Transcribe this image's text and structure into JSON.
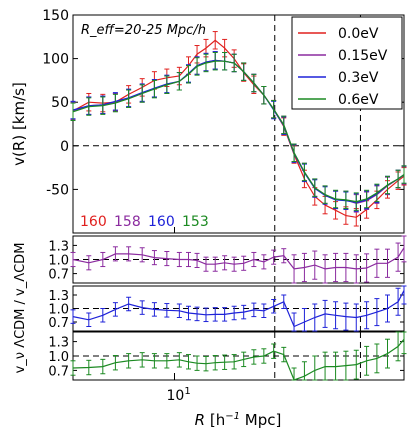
{
  "chart_data": [
    {
      "type": "line",
      "panel": "main",
      "annotation": "R_eff=20-25 Mpc/h",
      "ylabel": "v(R) [km/s]",
      "ylim": [
        -100,
        150
      ],
      "yticks": [
        -50,
        0,
        50,
        100,
        150
      ],
      "xscale": "log",
      "xlim": [
        4.4,
        64
      ],
      "reference_lines": {
        "y": [
          0
        ],
        "x": [
          22.5,
          45
        ]
      },
      "legend_position": "top-right",
      "x": [
        4.4,
        5.0,
        5.6,
        6.2,
        6.9,
        7.7,
        8.5,
        9.4,
        10.4,
        11.2,
        12.0,
        12.9,
        13.9,
        15.0,
        16.2,
        17.5,
        19.0,
        20.6,
        22.3,
        24.2,
        26.3,
        28.6,
        31.1,
        33.8,
        36.8,
        40.0,
        43.5,
        47.3,
        51.4,
        56.0,
        61.0,
        64.0
      ],
      "series": [
        {
          "name": "0.0eV",
          "color": "#e0201e",
          "values": [
            40,
            50,
            49,
            50,
            59,
            67,
            75,
            78,
            80,
            92,
            105,
            112,
            121,
            112,
            100,
            84,
            70,
            58,
            42,
            22,
            -10,
            -38,
            -58,
            -68,
            -74,
            -80,
            -82,
            -73,
            -62,
            -50,
            -40,
            -35
          ],
          "errors": [
            10,
            10,
            10,
            10,
            10,
            10,
            10,
            10,
            10,
            10,
            10,
            10,
            10,
            10,
            10,
            10,
            10,
            10,
            10,
            10,
            10,
            10,
            10,
            10,
            10,
            10,
            10,
            10,
            10,
            10,
            10,
            10
          ]
        },
        {
          "name": "0.15eV",
          "color": "#8b2b9f",
          "values": [
            40,
            46,
            47,
            50,
            54,
            60,
            66,
            70,
            74,
            82,
            92,
            96,
            98,
            97,
            95,
            85,
            72,
            58,
            42,
            24,
            -8,
            -30,
            -48,
            -56,
            -62,
            -62,
            -66,
            -63,
            -56,
            -46,
            -38,
            -34
          ],
          "errors": [
            10,
            10,
            10,
            10,
            10,
            10,
            10,
            10,
            10,
            10,
            10,
            10,
            10,
            10,
            10,
            10,
            10,
            10,
            10,
            10,
            10,
            10,
            10,
            10,
            10,
            10,
            10,
            10,
            10,
            10,
            10,
            10
          ]
        },
        {
          "name": "0.3eV",
          "color": "#1e22d8",
          "values": [
            41,
            46,
            47,
            51,
            55,
            61,
            66,
            71,
            74,
            83,
            92,
            96,
            98,
            97,
            95,
            85,
            72,
            58,
            41,
            23,
            -9,
            -31,
            -49,
            -57,
            -62,
            -63,
            -65,
            -62,
            -55,
            -45,
            -38,
            -33
          ],
          "errors": [
            10,
            10,
            10,
            10,
            10,
            10,
            10,
            10,
            10,
            10,
            10,
            10,
            10,
            10,
            10,
            10,
            10,
            10,
            10,
            10,
            10,
            10,
            10,
            10,
            10,
            10,
            10,
            10,
            10,
            10,
            10,
            10
          ]
        },
        {
          "name": "0.6eV",
          "color": "#1c8a22",
          "values": [
            39,
            45,
            46,
            49,
            54,
            60,
            65,
            70,
            74,
            82,
            91,
            95,
            97,
            97,
            95,
            85,
            72,
            58,
            42,
            24,
            -8,
            -30,
            -48,
            -56,
            -61,
            -62,
            -64,
            -61,
            -54,
            -45,
            -38,
            -33
          ],
          "errors": [
            10,
            10,
            10,
            10,
            10,
            10,
            10,
            10,
            10,
            10,
            10,
            10,
            10,
            10,
            10,
            10,
            10,
            10,
            10,
            10,
            10,
            10,
            10,
            10,
            10,
            10,
            10,
            10,
            10,
            10,
            10,
            10
          ]
        }
      ],
      "counts": [
        {
          "text": "160",
          "color": "#e0201e"
        },
        {
          "text": "158",
          "color": "#8b2b9f"
        },
        {
          "text": "160",
          "color": "#1e22d8"
        },
        {
          "text": "153",
          "color": "#1c8a22"
        }
      ]
    },
    {
      "type": "line",
      "panel": "ratio",
      "ylabel": "v_ν ΛCDM / v_ΛCDM",
      "xlabel": "R [h^-1 Mpc]",
      "xticks": [
        {
          "value": 10,
          "label": "10^1"
        }
      ],
      "ylim": [
        0.5,
        1.5
      ],
      "yticks": [
        0.7,
        1.0,
        1.3
      ],
      "reference_lines": {
        "y": [
          1.0
        ],
        "x": [
          22.5,
          45
        ]
      },
      "series": [
        {
          "name": "0.15eV",
          "color": "#8b2b9f",
          "values": [
            1.0,
            0.93,
            1.0,
            1.12,
            1.12,
            1.1,
            1.04,
            1.02,
            1.0,
            1.0,
            0.98,
            0.9,
            0.9,
            0.93,
            0.9,
            0.92,
            1.0,
            0.95,
            1.05,
            1.08,
            0.8,
            0.83,
            0.88,
            0.8,
            0.83,
            0.83,
            0.8,
            0.82,
            0.92,
            0.92,
            1.05,
            1.25
          ],
          "errors": [
            0.15,
            0.15,
            0.15,
            0.15,
            0.15,
            0.15,
            0.15,
            0.15,
            0.15,
            0.15,
            0.15,
            0.15,
            0.15,
            0.15,
            0.15,
            0.15,
            0.15,
            0.15,
            0.15,
            0.15,
            0.3,
            0.3,
            0.3,
            0.3,
            0.3,
            0.3,
            0.3,
            0.3,
            0.3,
            0.3,
            0.3,
            0.3
          ]
        },
        {
          "name": "0.3eV",
          "color": "#1e22d8",
          "values": [
            0.82,
            0.75,
            0.85,
            0.98,
            1.1,
            1.02,
            0.98,
            0.96,
            0.95,
            0.9,
            0.88,
            0.86,
            0.87,
            0.87,
            0.9,
            0.92,
            0.97,
            0.95,
            1.05,
            1.15,
            0.6,
            0.7,
            0.8,
            0.88,
            0.85,
            0.82,
            0.8,
            0.85,
            0.92,
            1.0,
            1.15,
            1.4
          ],
          "errors": [
            0.15,
            0.15,
            0.15,
            0.15,
            0.15,
            0.15,
            0.15,
            0.15,
            0.15,
            0.15,
            0.15,
            0.15,
            0.15,
            0.15,
            0.15,
            0.15,
            0.15,
            0.15,
            0.15,
            0.15,
            0.3,
            0.3,
            0.3,
            0.3,
            0.3,
            0.3,
            0.3,
            0.3,
            0.3,
            0.3,
            0.3,
            0.3
          ]
        },
        {
          "name": "0.6eV",
          "color": "#1c8a22",
          "values": [
            0.75,
            0.76,
            0.78,
            0.86,
            0.9,
            0.92,
            0.9,
            0.9,
            0.92,
            0.88,
            0.85,
            0.84,
            0.86,
            0.87,
            0.88,
            0.93,
            0.98,
            1.0,
            1.1,
            1.03,
            0.45,
            0.58,
            0.7,
            0.78,
            0.78,
            0.8,
            0.82,
            0.9,
            0.95,
            1.05,
            1.2,
            1.35
          ],
          "errors": [
            0.15,
            0.15,
            0.15,
            0.15,
            0.15,
            0.15,
            0.15,
            0.15,
            0.15,
            0.15,
            0.15,
            0.15,
            0.15,
            0.15,
            0.15,
            0.15,
            0.15,
            0.15,
            0.15,
            0.15,
            0.3,
            0.3,
            0.3,
            0.3,
            0.3,
            0.3,
            0.3,
            0.3,
            0.3,
            0.3,
            0.3,
            0.3
          ]
        }
      ]
    }
  ]
}
